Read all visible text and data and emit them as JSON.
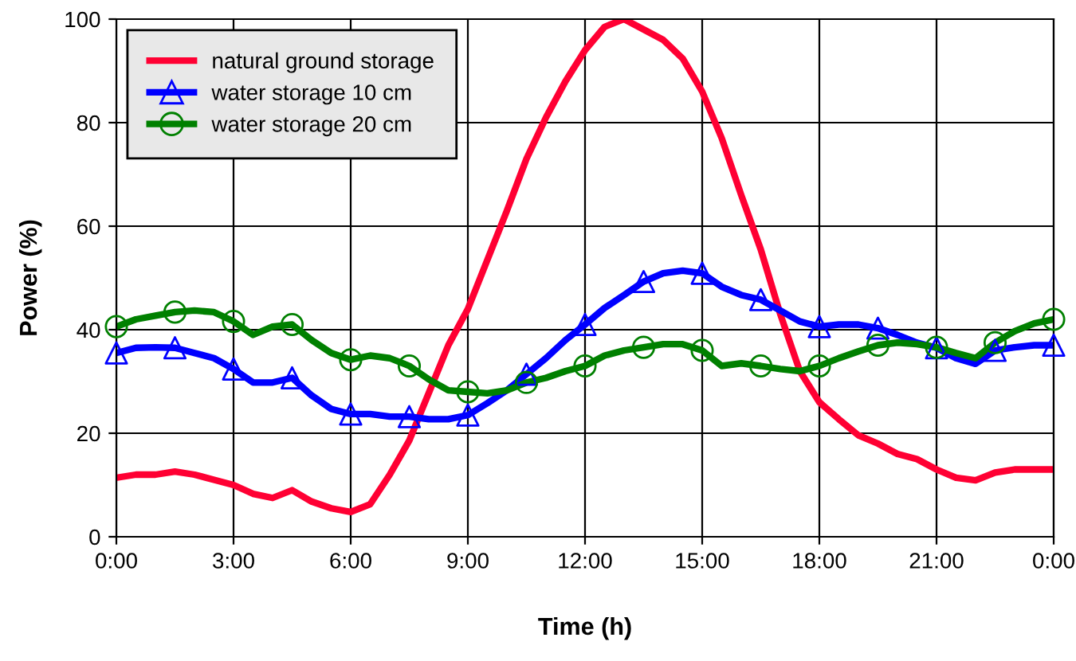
{
  "chart_data": {
    "type": "line",
    "xlabel": "Time (h)",
    "ylabel": "Power (%)",
    "x": [
      0,
      0.5,
      1,
      1.5,
      2,
      2.5,
      3,
      3.5,
      4,
      4.5,
      5,
      5.5,
      6,
      6.5,
      7,
      7.5,
      8,
      8.5,
      9,
      9.5,
      10,
      10.5,
      11,
      11.5,
      12,
      12.5,
      13,
      13.5,
      14,
      14.5,
      15,
      15.5,
      16,
      16.5,
      17,
      17.5,
      18,
      18.5,
      19,
      19.5,
      20,
      20.5,
      21,
      21.5,
      22,
      22.5,
      23,
      23.5,
      24
    ],
    "series": [
      {
        "name": "natural ground storage",
        "color": "#ff0033",
        "marker": "none",
        "values": [
          11.4,
          12,
          12,
          12.6,
          12,
          11,
          10,
          8.3,
          7.5,
          9,
          6.8,
          5.5,
          4.8,
          6.3,
          12,
          18.6,
          27.8,
          37,
          44,
          53.5,
          63,
          73,
          81,
          88,
          94,
          98.5,
          100,
          98,
          96,
          92.4,
          86,
          77,
          66,
          55.5,
          43,
          32,
          26,
          22.7,
          19.6,
          18,
          16,
          15,
          13,
          11.4,
          10.9,
          12.4,
          13,
          13,
          13
        ]
      },
      {
        "name": "water storage 10 cm",
        "color": "#0000ff",
        "marker": "none",
        "values": [
          35.5,
          36.5,
          36.6,
          36.5,
          35.5,
          34.5,
          32.4,
          29.8,
          29.8,
          30.7,
          27.3,
          24.7,
          23.7,
          23.7,
          23.2,
          23.2,
          22.7,
          22.7,
          23.5,
          25.8,
          28.3,
          31.4,
          34.5,
          38,
          41,
          44.2,
          46.7,
          49.3,
          50.9,
          51.4,
          50.9,
          48.3,
          46.7,
          45.8,
          43.7,
          41.6,
          40.6,
          41,
          41,
          40.3,
          39,
          37.5,
          36.5,
          34.5,
          33.4,
          36,
          36.6,
          37,
          37
        ]
      },
      {
        "name": "water storage 20 cm",
        "color": "#008000",
        "marker": "none",
        "values": [
          40.6,
          42,
          42.7,
          43.4,
          43.7,
          43.4,
          41.6,
          39,
          40.6,
          41,
          38,
          35.5,
          34.2,
          35,
          34.5,
          33,
          30.4,
          28.3,
          28,
          27.7,
          28.3,
          29.8,
          30.7,
          32,
          33,
          35,
          36,
          36.6,
          37.2,
          37.2,
          36,
          33,
          33.5,
          33,
          32.4,
          32,
          33,
          34.5,
          35.8,
          37,
          37.5,
          37.2,
          36.6,
          35.5,
          34.5,
          37.5,
          39.7,
          41.2,
          42
        ]
      },
      {
        "type": "scatter",
        "color": "#0000ff",
        "marker": "triangle",
        "x": [
          0,
          1.5,
          3,
          4.5,
          6,
          7.5,
          9,
          10.5,
          12,
          13.5,
          15,
          16.5,
          18,
          19.5,
          21,
          22.5,
          24
        ],
        "values": [
          35.5,
          36.5,
          32.4,
          30.7,
          23.7,
          23.2,
          23.5,
          31.4,
          41,
          49.3,
          50.9,
          45.8,
          40.6,
          40.3,
          36.5,
          36,
          37
        ]
      },
      {
        "type": "scatter",
        "color": "#008000",
        "marker": "circle",
        "x": [
          0,
          1.5,
          3,
          4.5,
          6,
          7.5,
          9,
          10.5,
          12,
          13.5,
          15,
          16.5,
          18,
          19.5,
          21,
          22.5,
          24
        ],
        "values": [
          40.6,
          43.4,
          41.6,
          41,
          34.2,
          33,
          28,
          29.8,
          33,
          36.6,
          36,
          33,
          33,
          37,
          36.6,
          37.5,
          42
        ]
      }
    ],
    "xlim": [
      0,
      24
    ],
    "ylim": [
      0,
      100
    ],
    "xticks": [
      {
        "value": 0,
        "label": "0:00"
      },
      {
        "value": 3,
        "label": "3:00"
      },
      {
        "value": 6,
        "label": "6:00"
      },
      {
        "value": 9,
        "label": "9:00"
      },
      {
        "value": 12,
        "label": "12:00"
      },
      {
        "value": 15,
        "label": "15:00"
      },
      {
        "value": 18,
        "label": "18:00"
      },
      {
        "value": 21,
        "label": "21:00"
      },
      {
        "value": 24,
        "label": "0:00"
      }
    ],
    "yticks": [
      0,
      20,
      40,
      60,
      80,
      100
    ],
    "grid": true,
    "legend": "top left",
    "line_style": "solid"
  }
}
